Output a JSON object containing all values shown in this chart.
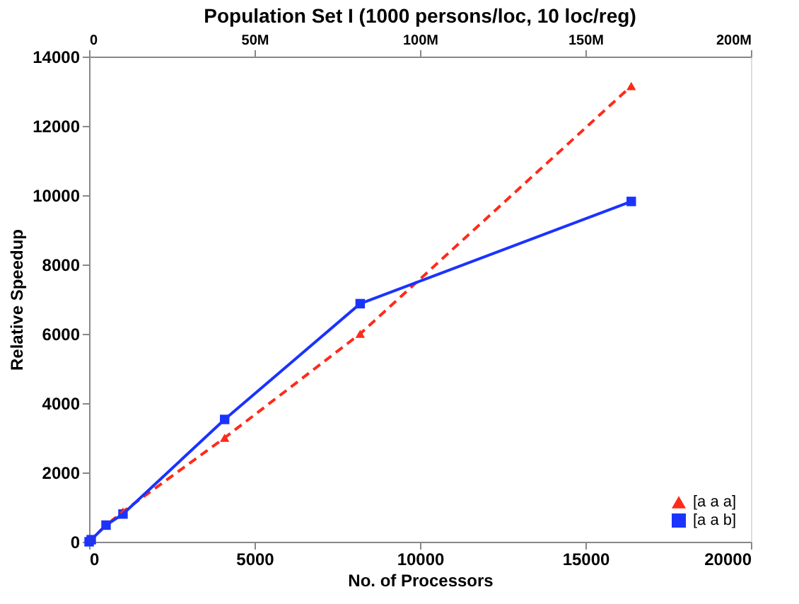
{
  "chart_data": {
    "type": "line",
    "title": "Population Set I (1000 persons/loc, 10 loc/reg)",
    "xlabel": "No. of Processors",
    "ylabel": "Relative Speedup",
    "x": [
      1,
      64,
      512,
      1024,
      4096,
      8192,
      16384
    ],
    "series": [
      {
        "name": "[a a a]",
        "color": "#ff2a1a",
        "marker": "triangle",
        "line_style": "dashed",
        "values": [
          0,
          60,
          480,
          870,
          3000,
          6000,
          13150
        ]
      },
      {
        "name": "[a a b]",
        "color": "#1a33ff",
        "marker": "square",
        "line_style": "solid",
        "values": [
          0,
          60,
          480,
          800,
          3530,
          6870,
          9820
        ]
      }
    ],
    "xlim": [
      0,
      20000
    ],
    "xticks": [
      0,
      5000,
      10000,
      15000,
      20000
    ],
    "ylim": [
      0,
      14000
    ],
    "yticks": [
      0,
      2000,
      4000,
      6000,
      8000,
      10000,
      12000,
      14000
    ],
    "x2lim": [
      0,
      200000000
    ],
    "x2ticks": [
      0,
      {
        "value": 50000000,
        "label": "50M"
      },
      {
        "value": 100000000,
        "label": "100M"
      },
      {
        "value": 150000000,
        "label": "150M"
      },
      {
        "value": 200000000,
        "label": "200M"
      }
    ],
    "grid": false,
    "legend": "bottom right"
  }
}
